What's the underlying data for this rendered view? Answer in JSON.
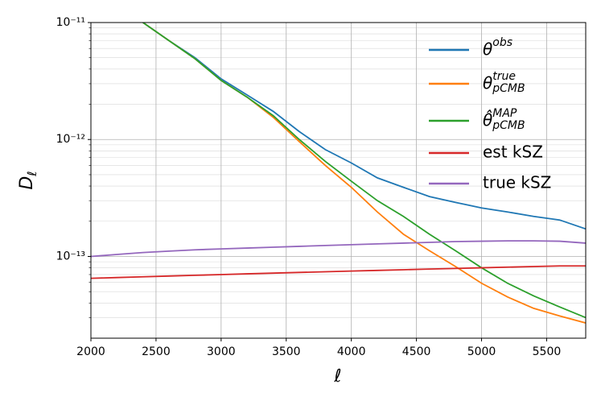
{
  "chart_data": {
    "type": "line",
    "x_label": "ℓ",
    "y_label": "D_{ℓ}",
    "x": [
      2000,
      2200,
      2400,
      2600,
      2800,
      3000,
      3200,
      3400,
      3600,
      3800,
      4000,
      4200,
      4400,
      4600,
      4800,
      5000,
      5200,
      5400,
      5600,
      5800
    ],
    "xlim": [
      2000,
      5800
    ],
    "xticks": [
      2000,
      2500,
      3000,
      3500,
      4000,
      4500,
      5000,
      5500
    ],
    "ylim": [
      2e-14,
      1e-11
    ],
    "yticks": [
      {
        "value": 1e-13,
        "label": "10⁻¹³"
      },
      {
        "value": 1e-12,
        "label": "10⁻¹²"
      },
      {
        "value": 1e-11,
        "label": "10⁻¹¹"
      }
    ],
    "log_y": true,
    "grid": true,
    "minor_grid": true,
    "legend": "upper right",
    "series": [
      {
        "name": "θ^{obs}",
        "color": "#1f77b4",
        "values": [
          null,
          null,
          1e-11,
          7e-12,
          5e-12,
          3.3e-12,
          2.4e-12,
          1.74e-12,
          1.17e-12,
          8.2e-13,
          6.3e-13,
          4.7e-13,
          3.9e-13,
          3.25e-13,
          2.9e-13,
          2.6e-13,
          2.4e-13,
          2.2e-13,
          2.05e-13,
          1.72e-13
        ]
      },
      {
        "name": "θ^{true}_{pCMB}",
        "color": "#ff7f0e",
        "values": [
          null,
          null,
          1e-11,
          7e-12,
          4.9e-12,
          3.2e-12,
          2.3e-12,
          1.55e-12,
          9.6e-13,
          6e-13,
          3.9e-13,
          2.4e-13,
          1.55e-13,
          1.12e-13,
          8.2e-14,
          5.9e-14,
          4.5e-14,
          3.6e-14,
          3.1e-14,
          2.7e-14
        ]
      },
      {
        "name": "θ̂^{MAP}_{pCMB}",
        "color": "#2ca02c",
        "values": [
          null,
          null,
          1e-11,
          7e-12,
          4.9e-12,
          3.2e-12,
          2.3e-12,
          1.6e-12,
          1e-12,
          6.5e-13,
          4.4e-13,
          3e-13,
          2.2e-13,
          1.55e-13,
          1.12e-13,
          8e-14,
          5.9e-14,
          4.6e-14,
          3.7e-14,
          3e-14
        ]
      },
      {
        "name": "est kSZ",
        "color": "#d62728",
        "values": [
          6.5e-14,
          6.6e-14,
          6.7e-14,
          6.8e-14,
          6.9e-14,
          7e-14,
          7.1e-14,
          7.2e-14,
          7.3e-14,
          7.4e-14,
          7.5e-14,
          7.6e-14,
          7.7e-14,
          7.8e-14,
          7.9e-14,
          8e-14,
          8.1e-14,
          8.2e-14,
          8.3e-14,
          8.3e-14
        ]
      },
      {
        "name": "true kSZ",
        "color": "#9467bd",
        "values": [
          1e-13,
          1.04e-13,
          1.08e-13,
          1.11e-13,
          1.14e-13,
          1.16e-13,
          1.18e-13,
          1.2e-13,
          1.22e-13,
          1.24e-13,
          1.26e-13,
          1.28e-13,
          1.3e-13,
          1.32e-13,
          1.34e-13,
          1.35e-13,
          1.36e-13,
          1.36e-13,
          1.35e-13,
          1.3e-13
        ]
      }
    ]
  }
}
